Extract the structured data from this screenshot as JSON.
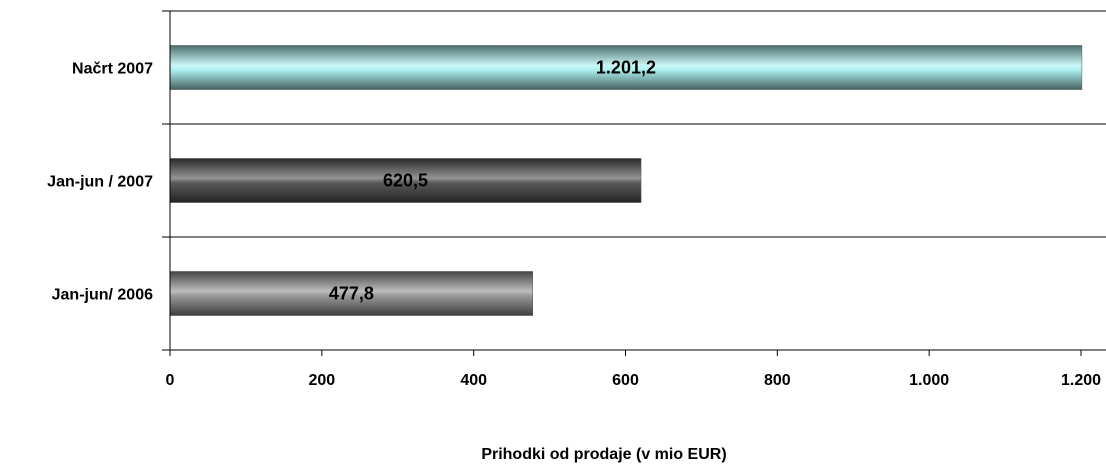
{
  "chart_data": {
    "type": "bar",
    "orientation": "horizontal",
    "categories": [
      "Načrt 2007",
      "Jan-jun / 2007",
      "Jan-jun/ 2006"
    ],
    "values": [
      1201.2,
      620.5,
      477.8
    ],
    "data_labels": [
      "1.201,2",
      "620,5",
      "477,8"
    ],
    "xlabel": "Prihodki od prodaje (v mio EUR)",
    "xlim": [
      0,
      1200
    ],
    "x_ticks": [
      0,
      200,
      400,
      600,
      800,
      1000,
      1200
    ],
    "x_tick_labels": [
      "0",
      "200",
      "400",
      "600",
      "800",
      "1.000",
      "1.200"
    ],
    "grid": "horizontal separators between categories",
    "legend": "none",
    "bar_colors": [
      "#aef2f2",
      "#5a5a5a",
      "#9a9a9a"
    ]
  }
}
